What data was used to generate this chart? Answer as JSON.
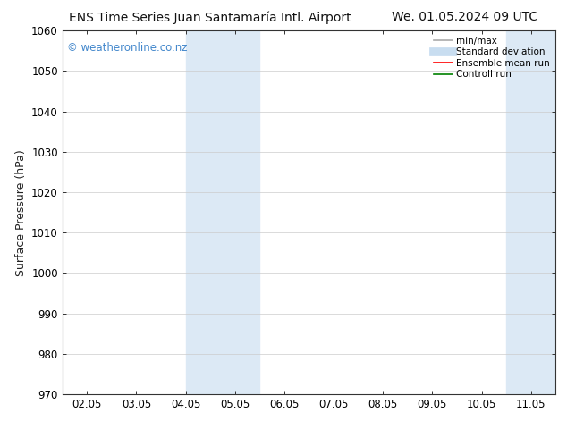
{
  "title_left": "ENS Time Series Juan Santamaría Intl. Airport",
  "title_right": "We. 01.05.2024 09 UTC",
  "ylabel": "Surface Pressure (hPa)",
  "watermark": "© weatheronline.co.nz",
  "ylim": [
    970,
    1060
  ],
  "yticks": [
    970,
    980,
    990,
    1000,
    1010,
    1020,
    1030,
    1040,
    1050,
    1060
  ],
  "xtick_labels": [
    "02.05",
    "03.05",
    "04.05",
    "05.05",
    "06.05",
    "07.05",
    "08.05",
    "09.05",
    "10.05",
    "11.05"
  ],
  "x_values": [
    0,
    1,
    2,
    3,
    4,
    5,
    6,
    7,
    8,
    9
  ],
  "xlim": [
    -0.5,
    9.5
  ],
  "shaded_regions": [
    {
      "x_start": 2.0,
      "x_end": 2.5,
      "color": "#dce9f5"
    },
    {
      "x_start": 2.5,
      "x_end": 3.5,
      "color": "#dce9f5"
    },
    {
      "x_start": 8.5,
      "x_end": 9.5,
      "color": "#dce9f5"
    }
  ],
  "legend_entries": [
    {
      "label": "min/max",
      "color": "#aaaaaa",
      "linewidth": 1.2,
      "linestyle": "-"
    },
    {
      "label": "Standard deviation",
      "color": "#c8ddf0",
      "linewidth": 7,
      "linestyle": "-"
    },
    {
      "label": "Ensemble mean run",
      "color": "red",
      "linewidth": 1.2,
      "linestyle": "-"
    },
    {
      "label": "Controll run",
      "color": "green",
      "linewidth": 1.2,
      "linestyle": "-"
    }
  ],
  "background_color": "#ffffff",
  "grid_color": "#cccccc",
  "title_fontsize": 10,
  "tick_fontsize": 8.5,
  "ylabel_fontsize": 9,
  "watermark_color": "#4488cc",
  "watermark_fontsize": 8.5
}
